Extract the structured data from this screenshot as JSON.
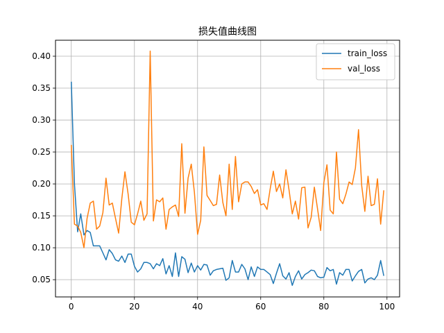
{
  "chart_data": {
    "type": "line",
    "title": "损失值曲线图",
    "xlabel": "",
    "ylabel": "",
    "xlim": [
      -5,
      104
    ],
    "ylim": [
      0.023,
      0.425
    ],
    "grid": true,
    "legend_position": "top-right",
    "x_ticks": [
      0,
      20,
      40,
      60,
      80,
      100
    ],
    "y_ticks": [
      0.05,
      0.1,
      0.15,
      0.2,
      0.25,
      0.3,
      0.35,
      0.4
    ],
    "x_tick_labels": [
      "0",
      "20",
      "40",
      "60",
      "80",
      "100"
    ],
    "y_tick_labels": [
      "0.05",
      "0.10",
      "0.15",
      "0.20",
      "0.25",
      "0.30",
      "0.35",
      "0.40"
    ],
    "series": [
      {
        "name": "train_loss",
        "color": "#1f77b4",
        "values": [
          0.36,
          0.2,
          0.125,
          0.153,
          0.12,
          0.127,
          0.124,
          0.103,
          0.103,
          0.103,
          0.092,
          0.081,
          0.097,
          0.091,
          0.081,
          0.079,
          0.087,
          0.077,
          0.09,
          0.09,
          0.071,
          0.062,
          0.067,
          0.077,
          0.077,
          0.075,
          0.067,
          0.075,
          0.072,
          0.083,
          0.059,
          0.072,
          0.055,
          0.092,
          0.055,
          0.086,
          0.082,
          0.061,
          0.076,
          0.062,
          0.072,
          0.065,
          0.074,
          0.073,
          0.057,
          0.064,
          0.066,
          0.067,
          0.068,
          0.049,
          0.053,
          0.08,
          0.062,
          0.062,
          0.074,
          0.067,
          0.05,
          0.07,
          0.055,
          0.07,
          0.066,
          0.066,
          0.062,
          0.058,
          0.044,
          0.06,
          0.075,
          0.056,
          0.051,
          0.061,
          0.041,
          0.055,
          0.064,
          0.051,
          0.058,
          0.061,
          0.065,
          0.064,
          0.055,
          0.053,
          0.054,
          0.069,
          0.064,
          0.066,
          0.043,
          0.061,
          0.057,
          0.066,
          0.066,
          0.048,
          0.056,
          0.063,
          0.066,
          0.045,
          0.051,
          0.053,
          0.05,
          0.057,
          0.08,
          0.056
        ]
      },
      {
        "name": "val_loss",
        "color": "#ff7f0e",
        "values": [
          0.261,
          0.137,
          0.134,
          0.124,
          0.1,
          0.146,
          0.17,
          0.173,
          0.129,
          0.134,
          0.155,
          0.209,
          0.167,
          0.17,
          0.146,
          0.123,
          0.177,
          0.219,
          0.184,
          0.14,
          0.136,
          0.153,
          0.173,
          0.143,
          0.153,
          0.408,
          0.142,
          0.175,
          0.172,
          0.178,
          0.129,
          0.16,
          0.164,
          0.167,
          0.149,
          0.263,
          0.154,
          0.209,
          0.231,
          0.187,
          0.121,
          0.143,
          0.258,
          0.182,
          0.174,
          0.166,
          0.168,
          0.214,
          0.171,
          0.15,
          0.231,
          0.16,
          0.243,
          0.172,
          0.2,
          0.203,
          0.203,
          0.196,
          0.185,
          0.191,
          0.167,
          0.169,
          0.16,
          0.192,
          0.22,
          0.188,
          0.2,
          0.178,
          0.222,
          0.19,
          0.153,
          0.173,
          0.145,
          0.194,
          0.195,
          0.131,
          0.148,
          0.195,
          0.161,
          0.127,
          0.202,
          0.23,
          0.159,
          0.153,
          0.25,
          0.176,
          0.169,
          0.184,
          0.203,
          0.199,
          0.225,
          0.285,
          0.197,
          0.157,
          0.212,
          0.166,
          0.168,
          0.208,
          0.137,
          0.19
        ]
      }
    ]
  }
}
